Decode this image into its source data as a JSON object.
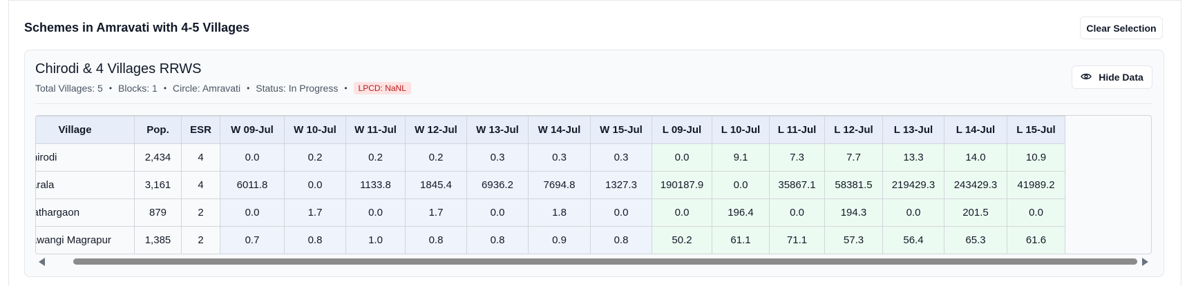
{
  "section": {
    "title": "Schemes in Amravati with 4-5 Villages",
    "clear_label": "Clear Selection"
  },
  "scheme": {
    "name": "Chirodi & 4 Villages RRWS",
    "total_villages": "Total Villages: 5",
    "blocks": "Blocks: 1",
    "circle": "Circle: Amravati",
    "status": "Status: In Progress",
    "lpcd": "LPCD: NaNL",
    "hide_label": "Hide Data",
    "hide_icon": "eye-icon"
  },
  "table": {
    "headers": [
      "Village",
      "Pop.",
      "ESR",
      "W 09-Jul",
      "W 10-Jul",
      "W 11-Jul",
      "W 12-Jul",
      "W 13-Jul",
      "W 14-Jul",
      "W 15-Jul",
      "L 09-Jul",
      "L 10-Jul",
      "L 11-Jul",
      "L 12-Jul",
      "L 13-Jul",
      "L 14-Jul",
      "L 15-Jul"
    ],
    "rows": [
      [
        "Chirodi",
        "2,434",
        "4",
        "0.0",
        "0.2",
        "0.2",
        "0.2",
        "0.3",
        "0.3",
        "0.3",
        "0.0",
        "9.1",
        "7.3",
        "7.7",
        "13.3",
        "14.0",
        "10.9"
      ],
      [
        "Parala",
        "3,161",
        "4",
        "6011.8",
        "0.0",
        "1133.8",
        "1845.4",
        "6936.2",
        "7694.8",
        "1327.3",
        "190187.9",
        "0.0",
        "35867.1",
        "58381.5",
        "219429.3",
        "243429.3",
        "41989.2"
      ],
      [
        "Mathargaon",
        "879",
        "2",
        "0.0",
        "1.7",
        "0.0",
        "1.7",
        "0.0",
        "1.8",
        "0.0",
        "0.0",
        "196.4",
        "0.0",
        "194.3",
        "0.0",
        "201.5",
        "0.0"
      ],
      [
        "Pawangi Magrapur",
        "1,385",
        "2",
        "0.7",
        "0.8",
        "1.0",
        "0.8",
        "0.8",
        "0.9",
        "0.8",
        "50.2",
        "61.1",
        "71.1",
        "57.3",
        "56.4",
        "65.3",
        "61.6"
      ]
    ]
  },
  "colors": {
    "water_cell": "#eef3fc",
    "lpcd_cell": "#ecfbf1",
    "lpcd_badge_bg": "#fee2e2",
    "lpcd_badge_text": "#b91c1c"
  }
}
